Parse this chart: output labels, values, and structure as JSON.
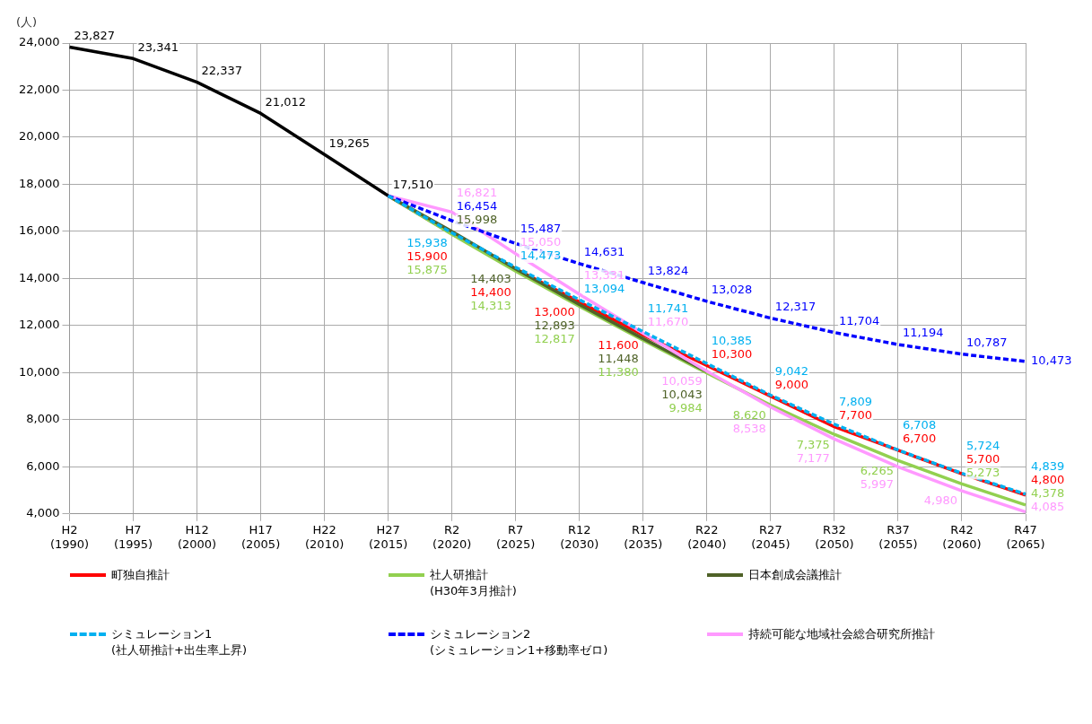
{
  "chart_data": {
    "type": "line",
    "ylabel": "(人)",
    "categories": [
      "H2 (1990)",
      "H7 (1995)",
      "H12 (2000)",
      "H17 (2005)",
      "H22 (2010)",
      "H27 (2015)",
      "R2 (2020)",
      "R7 (2025)",
      "R12 (2030)",
      "R17 (2035)",
      "R22 (2040)",
      "R27 (2045)",
      "R32 (2050)",
      "R37 (2055)",
      "R42 (2060)",
      "R47 (2065)"
    ],
    "ylim": [
      4000,
      24000
    ],
    "yticks": [
      {
        "value": 4000,
        "label": "4,000"
      },
      {
        "value": 6000,
        "label": "6,000"
      },
      {
        "value": 8000,
        "label": "8,000"
      },
      {
        "value": 10000,
        "label": "10,000"
      },
      {
        "value": 12000,
        "label": "12,000"
      },
      {
        "value": 14000,
        "label": "14,000"
      },
      {
        "value": 16000,
        "label": "16,000"
      },
      {
        "value": 18000,
        "label": "18,000"
      },
      {
        "value": 20000,
        "label": "20,000"
      },
      {
        "value": 22000,
        "label": "22,000"
      },
      {
        "value": 24000,
        "label": "24,000"
      }
    ],
    "grid": true,
    "legend": "bottom",
    "marker": "none",
    "series": [
      {
        "color": "#000000",
        "line_style": "solid",
        "values": [
          23827,
          23341,
          22337,
          21012,
          19265,
          17510,
          null,
          null,
          null,
          null,
          null,
          null,
          null,
          null,
          null,
          null
        ],
        "value_labels": [
          "23,827",
          "23,341",
          "22,337",
          "21,012",
          "19,265",
          "17,510",
          null,
          null,
          null,
          null,
          null,
          null,
          null,
          null,
          null,
          null
        ]
      },
      {
        "name": "町独自推計",
        "color": "#ff0000",
        "line_style": "solid",
        "values": [
          null,
          null,
          null,
          null,
          null,
          17510,
          15900,
          14400,
          13000,
          11600,
          10300,
          9000,
          7700,
          6700,
          5700,
          4800
        ],
        "value_labels": [
          null,
          null,
          null,
          null,
          null,
          null,
          "15,900",
          "14,400",
          "13,000",
          "11,600",
          "10,300",
          "9,000",
          "7,700",
          "6,700",
          "5,700",
          "4,800"
        ]
      },
      {
        "name": "社人研推計\n(H30年3月推計)",
        "color": "#92d050",
        "line_style": "solid",
        "values": [
          null,
          null,
          null,
          null,
          null,
          17510,
          15875,
          14313,
          12817,
          11380,
          9984,
          8620,
          7375,
          6265,
          5273,
          4378
        ],
        "value_labels": [
          null,
          null,
          null,
          null,
          null,
          null,
          "15,875",
          "14,313",
          "12,817",
          "11,380",
          "9,984",
          "8,620",
          "7,375",
          "6,265",
          "5,273",
          "4,378"
        ]
      },
      {
        "name": "日本創成会議推計",
        "color": "#4f6228",
        "line_style": "solid",
        "values": [
          null,
          null,
          null,
          null,
          null,
          17510,
          15998,
          14403,
          12893,
          11448,
          10043,
          null,
          null,
          null,
          null,
          null
        ],
        "value_labels": [
          null,
          null,
          null,
          null,
          null,
          null,
          "15,998",
          "14,403",
          "12,893",
          "11,448",
          "10,043",
          null,
          null,
          null,
          null,
          null
        ]
      },
      {
        "name": "シミュレーション1\n(社人研推計+出生率上昇)",
        "color": "#00b0f0",
        "line_style": "dashed",
        "values": [
          null,
          null,
          null,
          null,
          null,
          17510,
          15938,
          14473,
          13094,
          11741,
          10385,
          9042,
          7809,
          6708,
          5724,
          4839
        ],
        "value_labels": [
          null,
          null,
          null,
          null,
          null,
          null,
          "15,938",
          "14,473",
          "13,094",
          "11,741",
          "10,385",
          "9,042",
          "7,809",
          "6,708",
          "5,724",
          "4,839"
        ]
      },
      {
        "name": "シミュレーション2\n(シミュレーション1+移動率ゼロ)",
        "color": "#0000ff",
        "line_style": "dashed",
        "values": [
          null,
          null,
          null,
          null,
          null,
          17510,
          16454,
          15487,
          14631,
          13824,
          13028,
          12317,
          11704,
          11194,
          10787,
          10473
        ],
        "value_labels": [
          null,
          null,
          null,
          null,
          null,
          null,
          "16,454",
          "15,487",
          "14,631",
          "13,824",
          "13,028",
          "12,317",
          "11,704",
          "11,194",
          "10,787",
          "10,473"
        ]
      },
      {
        "name": "持続可能な地域社会総合研究所推計",
        "color": "#ff99ff",
        "line_style": "solid",
        "values": [
          null,
          null,
          null,
          null,
          null,
          17510,
          16821,
          15050,
          13331,
          11670,
          10059,
          8538,
          7177,
          5997,
          4980,
          4085
        ],
        "value_labels": [
          null,
          null,
          null,
          null,
          null,
          null,
          "16,821",
          "15,050",
          "13,331",
          "11,670",
          "10,059",
          "8,538",
          "7,177",
          "5,997",
          "4,980",
          "4,085"
        ]
      }
    ]
  }
}
